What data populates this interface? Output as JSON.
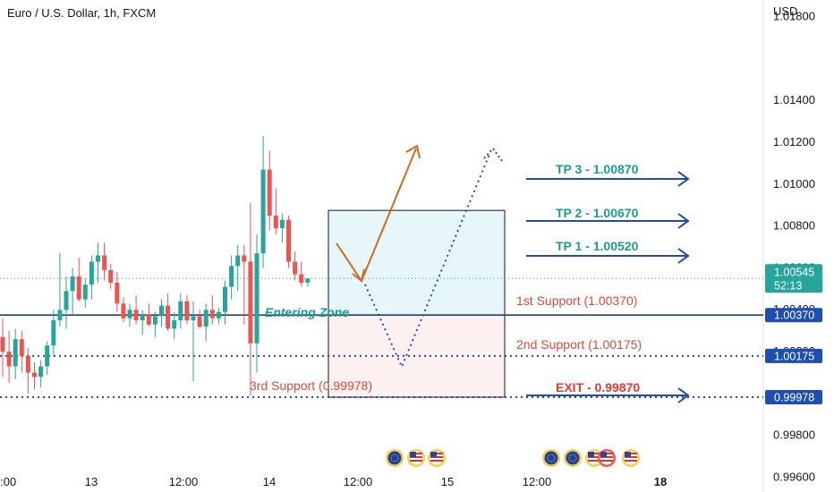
{
  "header": {
    "title": "Euro / U.S. Dollar, 1h, FXCM",
    "currency": "USD"
  },
  "colors": {
    "up": "#26a69a",
    "down": "#ef5350",
    "line_blue": "#1a3f8f",
    "arrow_blue": "#1e4fae",
    "arrow_orange": "#d2691e",
    "dotted_blue": "#2b46b4",
    "tp_green": "#1a9e8c",
    "support_red": "#e0483f",
    "current_price_bg": "#26a69a",
    "level_tag_bg": "#1e4fae"
  },
  "chart_data": {
    "type": "candlestick",
    "title": "Euro / U.S. Dollar, 1h, FXCM",
    "ylabel": "USD",
    "ylim": [
      0.99525,
      1.01875
    ],
    "y_ticks": [
      "1.01800",
      "1.01400",
      "1.01200",
      "1.01000",
      "1.00800",
      "1.00600",
      "1.00400",
      "1.00200",
      "0.99800",
      "0.99600"
    ],
    "x_ticks": [
      "12:00",
      "13",
      "12:00",
      "14",
      "12:00",
      "15",
      "12:00",
      "18"
    ],
    "candles": [
      {
        "o": 1.00265,
        "h": 1.00355,
        "l": 1.00075,
        "c": 1.00195
      },
      {
        "o": 1.00195,
        "h": 1.00295,
        "l": 1.00045,
        "c": 1.00125
      },
      {
        "o": 1.00125,
        "h": 1.00305,
        "l": 1.00065,
        "c": 1.00255
      },
      {
        "o": 1.00255,
        "h": 1.00295,
        "l": 1.00095,
        "c": 1.00175
      },
      {
        "o": 1.00175,
        "h": 1.00215,
        "l": 0.99995,
        "c": 1.00095
      },
      {
        "o": 1.00095,
        "h": 1.00145,
        "l": 1.00015,
        "c": 1.00075
      },
      {
        "o": 1.00075,
        "h": 1.00155,
        "l": 1.00025,
        "c": 1.00125
      },
      {
        "o": 1.00125,
        "h": 1.00245,
        "l": 1.00085,
        "c": 1.00225
      },
      {
        "o": 1.00225,
        "h": 1.00395,
        "l": 1.00175,
        "c": 1.00345
      },
      {
        "o": 1.00345,
        "h": 1.00665,
        "l": 1.00315,
        "c": 1.00395
      },
      {
        "o": 1.00395,
        "h": 1.00555,
        "l": 1.00305,
        "c": 1.00485
      },
      {
        "o": 1.00485,
        "h": 1.00595,
        "l": 1.00375,
        "c": 1.00555
      },
      {
        "o": 1.00555,
        "h": 1.00645,
        "l": 1.00435,
        "c": 1.00445
      },
      {
        "o": 1.00445,
        "h": 1.00545,
        "l": 1.00405,
        "c": 1.00515
      },
      {
        "o": 1.00515,
        "h": 1.00655,
        "l": 1.00445,
        "c": 1.00625
      },
      {
        "o": 1.00625,
        "h": 1.00715,
        "l": 1.00525,
        "c": 1.00655
      },
      {
        "o": 1.00655,
        "h": 1.00715,
        "l": 1.00535,
        "c": 1.00585
      },
      {
        "o": 1.00585,
        "h": 1.00615,
        "l": 1.00495,
        "c": 1.00525
      },
      {
        "o": 1.00525,
        "h": 1.00575,
        "l": 1.00385,
        "c": 1.00425
      },
      {
        "o": 1.00425,
        "h": 1.00455,
        "l": 1.00335,
        "c": 1.00355
      },
      {
        "o": 1.00355,
        "h": 1.00425,
        "l": 1.00315,
        "c": 1.00395
      },
      {
        "o": 1.00395,
        "h": 1.00465,
        "l": 1.00325,
        "c": 1.00345
      },
      {
        "o": 1.00345,
        "h": 1.00395,
        "l": 1.00275,
        "c": 1.00375
      },
      {
        "o": 1.00375,
        "h": 1.00425,
        "l": 1.00315,
        "c": 1.00325
      },
      {
        "o": 1.00325,
        "h": 1.00385,
        "l": 1.00265,
        "c": 1.00365
      },
      {
        "o": 1.00365,
        "h": 1.00445,
        "l": 1.00315,
        "c": 1.00415
      },
      {
        "o": 1.00415,
        "h": 1.00475,
        "l": 1.00295,
        "c": 1.00305
      },
      {
        "o": 1.00305,
        "h": 1.00385,
        "l": 1.00255,
        "c": 1.00345
      },
      {
        "o": 1.00345,
        "h": 1.00475,
        "l": 1.00305,
        "c": 1.00435
      },
      {
        "o": 1.00435,
        "h": 1.00465,
        "l": 1.00325,
        "c": 1.00345
      },
      {
        "o": 1.00345,
        "h": 1.00435,
        "l": 1.00055,
        "c": 1.00365
      },
      {
        "o": 1.00365,
        "h": 1.00395,
        "l": 1.00305,
        "c": 1.00315
      },
      {
        "o": 1.00315,
        "h": 1.00425,
        "l": 1.00245,
        "c": 1.00395
      },
      {
        "o": 1.00395,
        "h": 1.00465,
        "l": 1.00325,
        "c": 1.00355
      },
      {
        "o": 1.00355,
        "h": 1.00405,
        "l": 1.00325,
        "c": 1.00385
      },
      {
        "o": 1.00385,
        "h": 1.00535,
        "l": 1.00325,
        "c": 1.00505
      },
      {
        "o": 1.00505,
        "h": 1.00655,
        "l": 1.00445,
        "c": 1.00605
      },
      {
        "o": 1.00605,
        "h": 1.00705,
        "l": 1.00485,
        "c": 1.00655
      },
      {
        "o": 1.00655,
        "h": 1.00705,
        "l": 1.00325,
        "c": 1.00625
      },
      {
        "o": 1.00625,
        "h": 1.00905,
        "l": 0.99985,
        "c": 1.00235
      },
      {
        "o": 1.00235,
        "h": 1.00755,
        "l": 1.00095,
        "c": 1.00665
      },
      {
        "o": 1.00665,
        "h": 1.01225,
        "l": 1.00595,
        "c": 1.01065
      },
      {
        "o": 1.01065,
        "h": 1.01155,
        "l": 1.00775,
        "c": 1.00845
      },
      {
        "o": 1.00845,
        "h": 1.00975,
        "l": 1.00755,
        "c": 1.00785
      },
      {
        "o": 1.00785,
        "h": 1.00855,
        "l": 1.00715,
        "c": 1.00825
      },
      {
        "o": 1.00825,
        "h": 1.00845,
        "l": 1.00595,
        "c": 1.00625
      },
      {
        "o": 1.00625,
        "h": 1.00675,
        "l": 1.00535,
        "c": 1.00565
      },
      {
        "o": 1.00565,
        "h": 1.00625,
        "l": 1.00505,
        "c": 1.00525
      },
      {
        "o": 1.00525,
        "h": 1.00545,
        "l": 1.00505,
        "c": 1.00545
      }
    ],
    "current_price": "1.00545",
    "countdown": "52:13",
    "levels": {
      "resistance_line": {
        "value": 1.0037,
        "tag": "1.00370"
      },
      "support_2": {
        "value": 1.00175,
        "tag": "1.00175"
      },
      "support_3": {
        "value": 0.99978,
        "tag": "0.99978"
      }
    },
    "zones": {
      "profit": {
        "from": 1.0037,
        "to": 1.0087
      },
      "risk": {
        "from": 0.99978,
        "to": 1.0037
      }
    },
    "annotations": {
      "tp3": "TP 3 - 1.00870",
      "tp2": "TP 2 - 1.00670",
      "tp1": "TP 1 - 1.00520",
      "support1": "1st Support (1.00370)",
      "support2": "2nd Support (1.00175)",
      "support3": "3rd Support (0.99978)",
      "exit": "EXIT - 0.99870",
      "entering_zone": "Entering Zone"
    }
  }
}
